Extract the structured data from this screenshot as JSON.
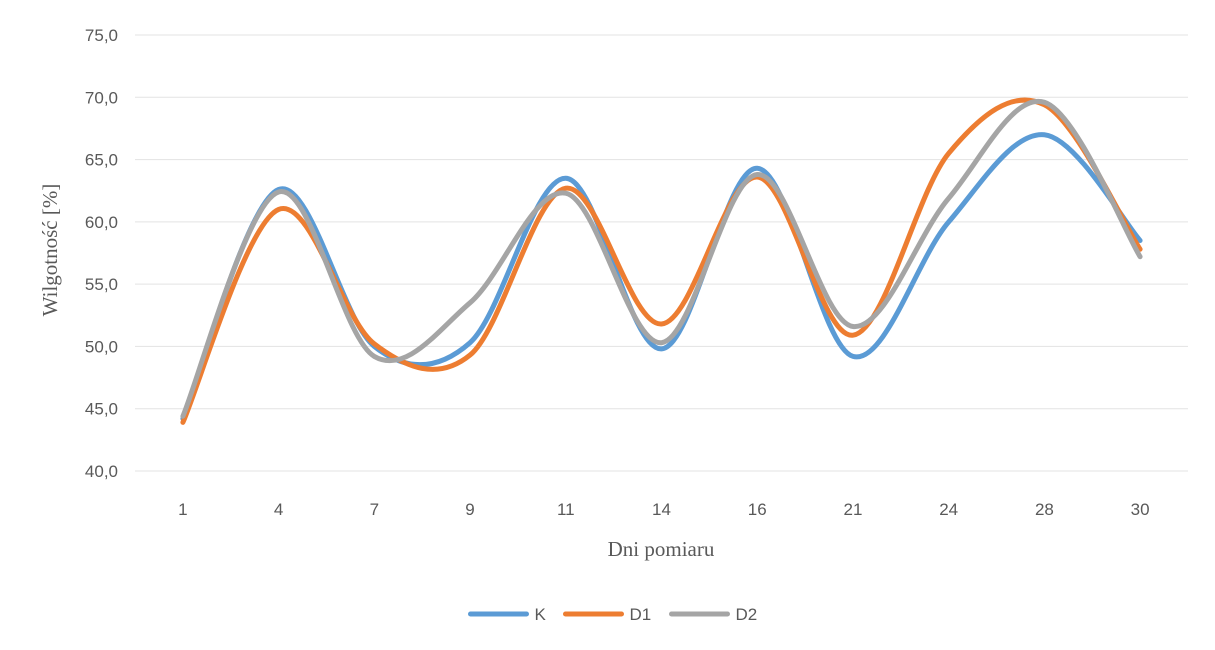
{
  "chart_data": {
    "type": "line",
    "categories": [
      "1",
      "4",
      "7",
      "9",
      "11",
      "14",
      "16",
      "21",
      "24",
      "28",
      "30"
    ],
    "series": [
      {
        "name": "K",
        "color": "#5b9bd5",
        "values": [
          44.2,
          62.6,
          50.0,
          50.3,
          63.5,
          49.8,
          64.3,
          49.2,
          60.0,
          67.0,
          58.5
        ]
      },
      {
        "name": "D1",
        "color": "#ed7d31",
        "values": [
          43.9,
          61.0,
          50.2,
          49.3,
          62.7,
          51.8,
          63.6,
          50.9,
          65.5,
          69.4,
          57.8
        ]
      },
      {
        "name": "D2",
        "color": "#a5a5a5",
        "values": [
          44.4,
          62.4,
          49.2,
          53.5,
          62.3,
          50.3,
          63.8,
          51.6,
          61.9,
          69.6,
          57.2
        ]
      }
    ],
    "title": "",
    "xlabel": "Dni pomiaru",
    "ylabel": "Wilgotność [%]",
    "ylim": [
      40,
      75
    ],
    "yticks": [
      "40,0",
      "45,0",
      "50,0",
      "55,0",
      "60,0",
      "65,0",
      "70,0",
      "75,0"
    ],
    "grid": true,
    "legend": "bottom"
  }
}
